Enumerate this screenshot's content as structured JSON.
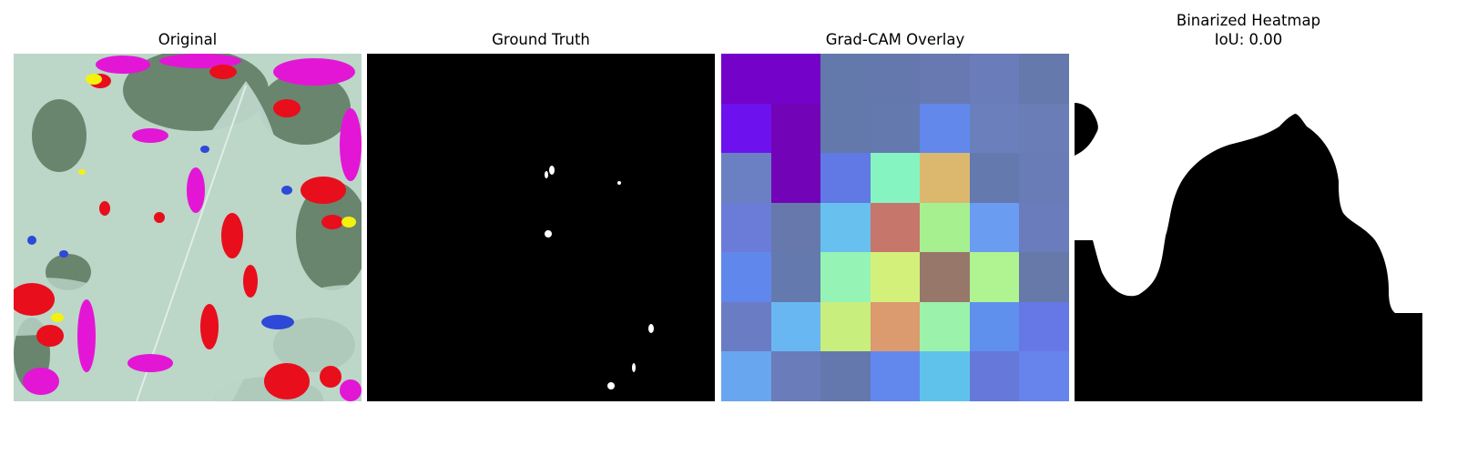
{
  "panels": [
    {
      "title": "Original",
      "image": "leaf-photo"
    },
    {
      "title": "Ground Truth",
      "image": "ground-truth-mask"
    },
    {
      "title": "Grad-CAM Overlay",
      "image": "gradcam-heatmap-overlay"
    },
    {
      "title": "Binarized Heatmap",
      "subtitle": "IoU: 0.00",
      "image": "binarized-heatmap-mask"
    }
  ],
  "gradcam_grid": [
    [
      "#7402c8",
      "#7402c8",
      "#6379ab",
      "#6478ad",
      "#6779b0",
      "#6a7cb9",
      "#6679ac"
    ],
    [
      "#6d12ee",
      "#7303b6",
      "#6378ab",
      "#6479ae",
      "#6288ec",
      "#6b7fbc",
      "#6a7db6"
    ],
    [
      "#6a80c2",
      "#7303b6",
      "#6079e4",
      "#86f4c1",
      "#dbb86e",
      "#6479ad",
      "#6a7cb8"
    ],
    [
      "#6a7cd8",
      "#6779ac",
      "#68c0ef",
      "#c6766b",
      "#a7f08f",
      "#6a9cf2",
      "#6a7cbc"
    ],
    [
      "#6088ec",
      "#6479ad",
      "#96f3b6",
      "#d3f07b",
      "#98776b",
      "#b0f391",
      "#6679a8"
    ],
    [
      "#6a7cc4",
      "#68b7f2",
      "#c8ee7e",
      "#dc9a6f",
      "#9bf2aa",
      "#6090ee",
      "#6678e6"
    ],
    [
      "#68a6ef",
      "#6a7cb9",
      "#6478ae",
      "#6288ee",
      "#5fc2ea",
      "#6678da",
      "#6684ec"
    ]
  ],
  "colors": {
    "background": "#ffffff",
    "mask_foreground": "#ffffff",
    "mask_background": "#000000",
    "leaf_pale": "#bcd6c8",
    "foliage_dark": "#4e6a50",
    "noise_magenta": "#e316d6",
    "noise_red": "#e80e1c",
    "noise_blue": "#2e48d8",
    "noise_yellow": "#f4f20c"
  }
}
